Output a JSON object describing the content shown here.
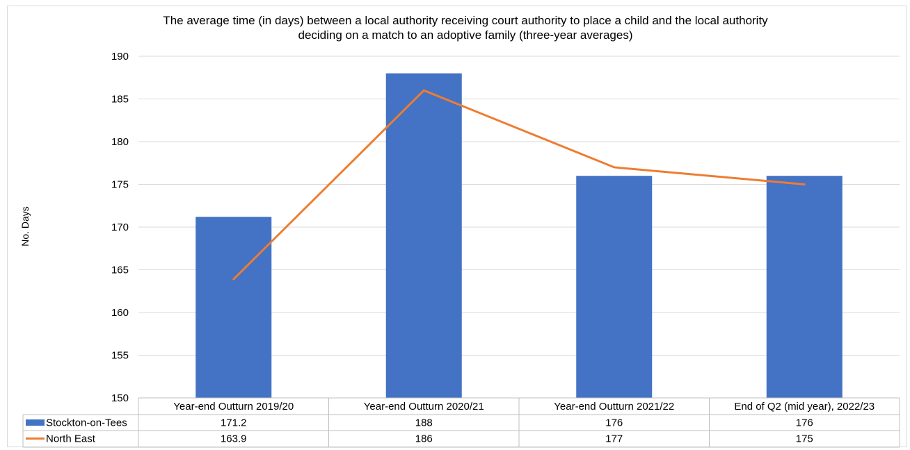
{
  "chart_data": {
    "type": "bar",
    "title": "The average time (in days) between a local authority receiving court authority to place a child and the local authority\ndeciding on a match to an adoptive family (three-year averages)",
    "ylabel": "No. Days",
    "ylim": [
      150,
      190
    ],
    "yticks": [
      150,
      155,
      160,
      165,
      170,
      175,
      180,
      185,
      190
    ],
    "grid": true,
    "legend": "data-table",
    "categories": [
      "Year-end Outturn 2019/20",
      "Year-end Outturn 2020/21",
      "Year-end Outturn 2021/22",
      "End of Q2 (mid year), 2022/23"
    ],
    "series": [
      {
        "name": "Stockton-on-Tees",
        "type": "bar",
        "color": "#4472c4",
        "values": [
          171.2,
          188,
          176,
          176
        ],
        "labels": [
          "171.2",
          "188",
          "176",
          "176"
        ]
      },
      {
        "name": "North East",
        "type": "line",
        "color": "#ed7d31",
        "values": [
          163.9,
          186,
          177,
          175
        ],
        "labels": [
          "163.9",
          "186",
          "177",
          "175"
        ]
      }
    ]
  }
}
